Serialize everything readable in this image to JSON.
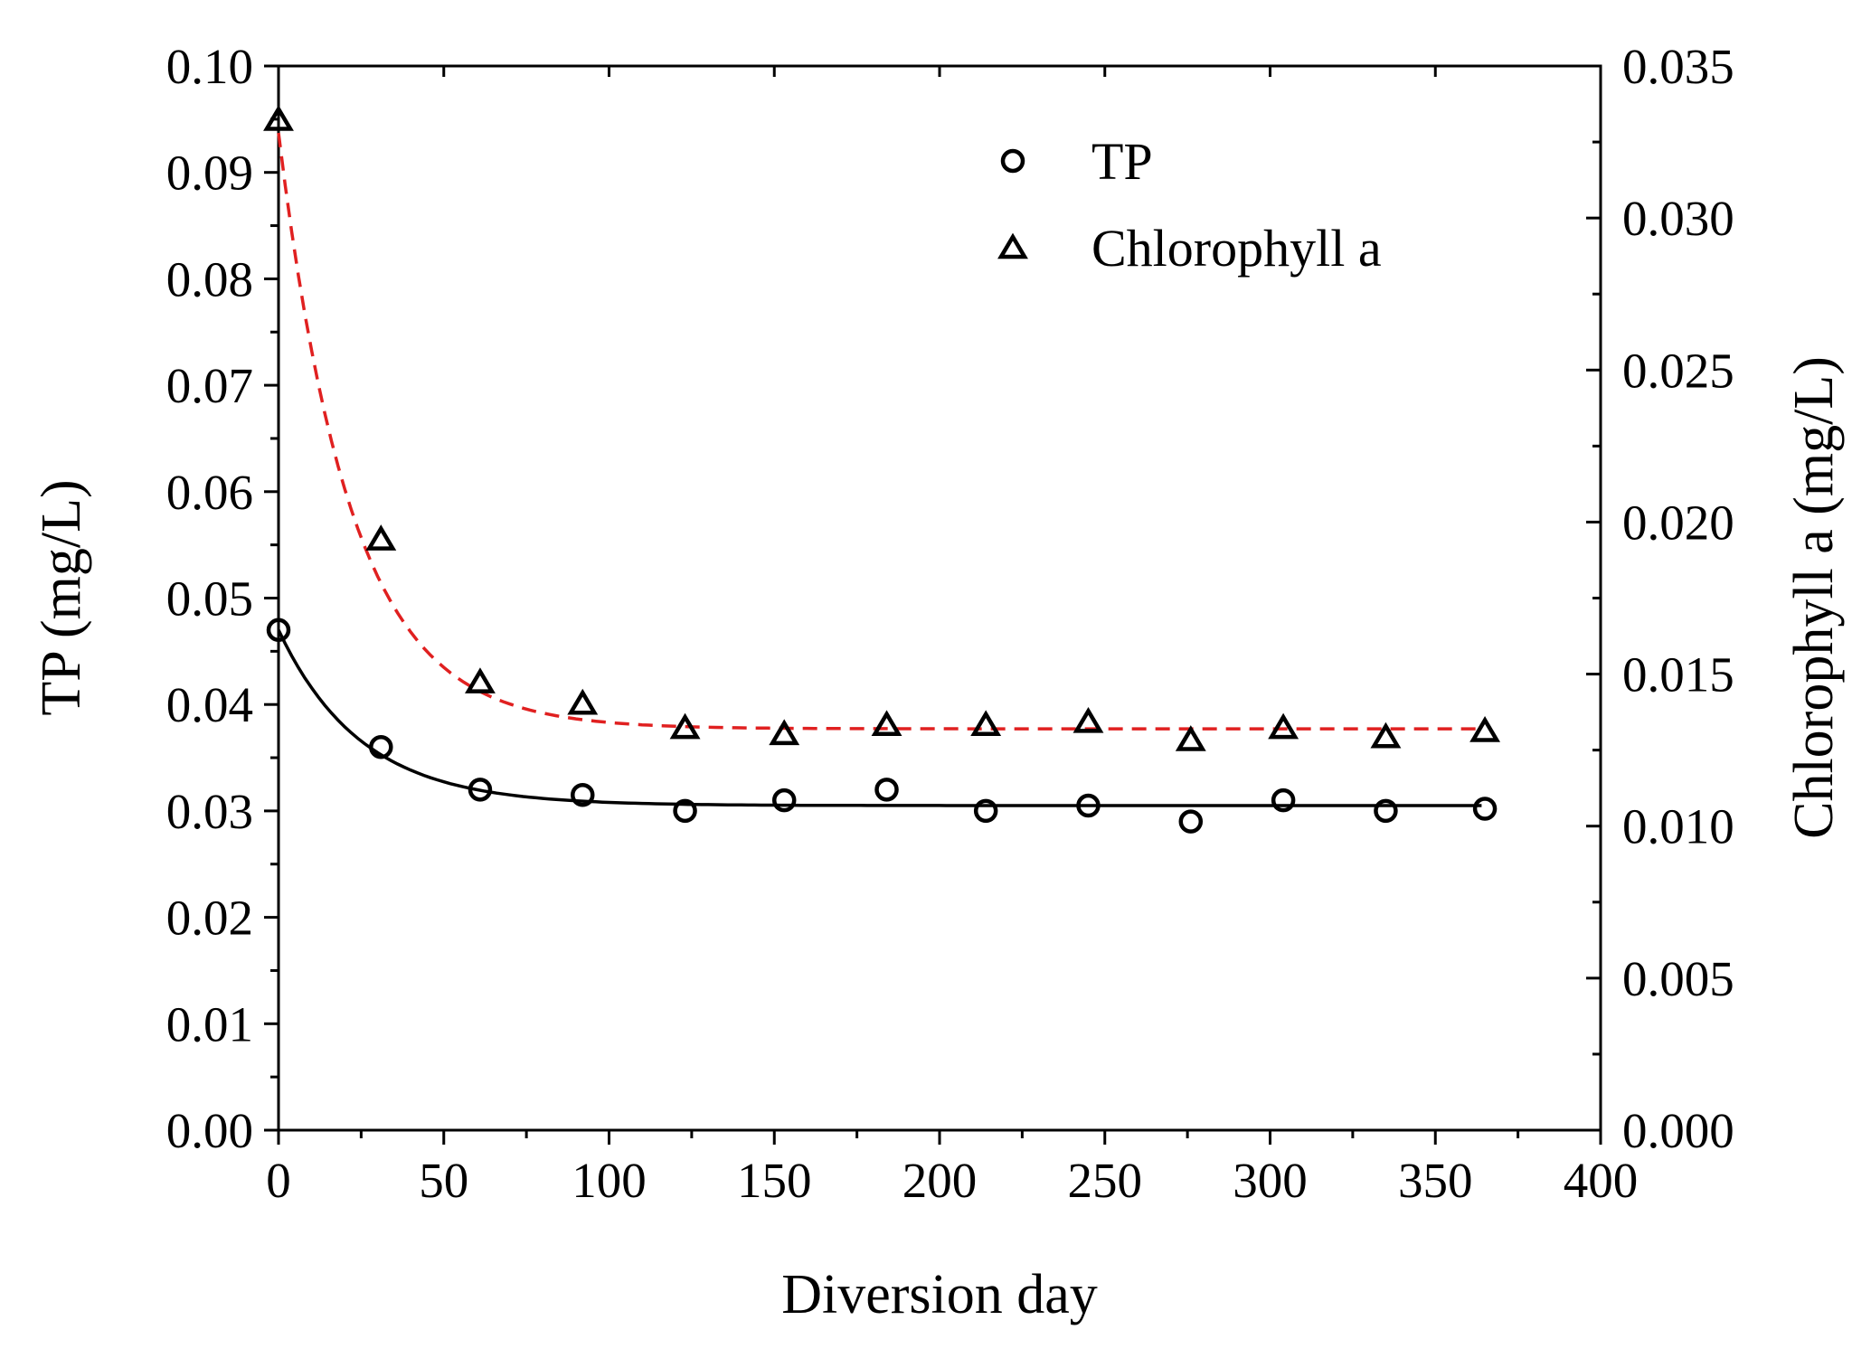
{
  "chart_data": {
    "type": "scatter",
    "title": "",
    "xlabel": "Diversion day",
    "ylabel_left": "TP (mg/L)",
    "ylabel_right": "Chlorophyll a (mg/L)",
    "xlim": [
      0,
      400
    ],
    "ylim_left": [
      0,
      0.1
    ],
    "ylim_right": [
      0,
      0.035
    ],
    "grid": false,
    "legend_position": "top-right",
    "x_ticks": [
      {
        "value": 0,
        "label": "0"
      },
      {
        "value": 50,
        "label": "50"
      },
      {
        "value": 100,
        "label": "100"
      },
      {
        "value": 150,
        "label": "150"
      },
      {
        "value": 200,
        "label": "200"
      },
      {
        "value": 250,
        "label": "250"
      },
      {
        "value": 300,
        "label": "300"
      },
      {
        "value": 350,
        "label": "350"
      },
      {
        "value": 400,
        "label": "400"
      }
    ],
    "y_left_ticks": [
      {
        "value": 0,
        "label": "0.00"
      },
      {
        "value": 0.01,
        "label": "0.01"
      },
      {
        "value": 0.02,
        "label": "0.02"
      },
      {
        "value": 0.03,
        "label": "0.03"
      },
      {
        "value": 0.04,
        "label": "0.04"
      },
      {
        "value": 0.05,
        "label": "0.05"
      },
      {
        "value": 0.06,
        "label": "0.06"
      },
      {
        "value": 0.07,
        "label": "0.07"
      },
      {
        "value": 0.08,
        "label": "0.08"
      },
      {
        "value": 0.09,
        "label": "0.09"
      },
      {
        "value": 0.1,
        "label": "0.10"
      }
    ],
    "y_right_ticks": [
      {
        "value": 0,
        "label": "0.000"
      },
      {
        "value": 0.005,
        "label": "0.005"
      },
      {
        "value": 0.01,
        "label": "0.010"
      },
      {
        "value": 0.015,
        "label": "0.015"
      },
      {
        "value": 0.02,
        "label": "0.020"
      },
      {
        "value": 0.025,
        "label": "0.025"
      },
      {
        "value": 0.03,
        "label": "0.030"
      },
      {
        "value": 0.035,
        "label": "0.035"
      }
    ],
    "series": [
      {
        "name": "TP",
        "axis": "left",
        "marker": "circle",
        "x": [
          0,
          31,
          61,
          92,
          123,
          153,
          184,
          214,
          245,
          276,
          304,
          335,
          365
        ],
        "y": [
          0.047,
          0.036,
          0.032,
          0.0315,
          0.03,
          0.031,
          0.032,
          0.03,
          0.0305,
          0.029,
          0.031,
          0.03,
          0.0302
        ],
        "fit": {
          "style": "solid",
          "color": "#000000",
          "asymptote": 0.0305,
          "amplitude": 0.0165,
          "tau": 25
        }
      },
      {
        "name": "Chlorophyll a",
        "axis": "right",
        "marker": "triangle",
        "x": [
          0,
          31,
          61,
          92,
          123,
          153,
          184,
          214,
          245,
          276,
          304,
          335,
          365
        ],
        "y": [
          0.0332,
          0.0194,
          0.0147,
          0.014,
          0.0132,
          0.013,
          0.0133,
          0.0133,
          0.0134,
          0.0128,
          0.0132,
          0.0129,
          0.0131
        ],
        "fit": {
          "style": "dashed",
          "color": "#e02020",
          "asymptote": 0.0132,
          "amplitude": 0.0196,
          "tau": 22
        }
      }
    ]
  }
}
